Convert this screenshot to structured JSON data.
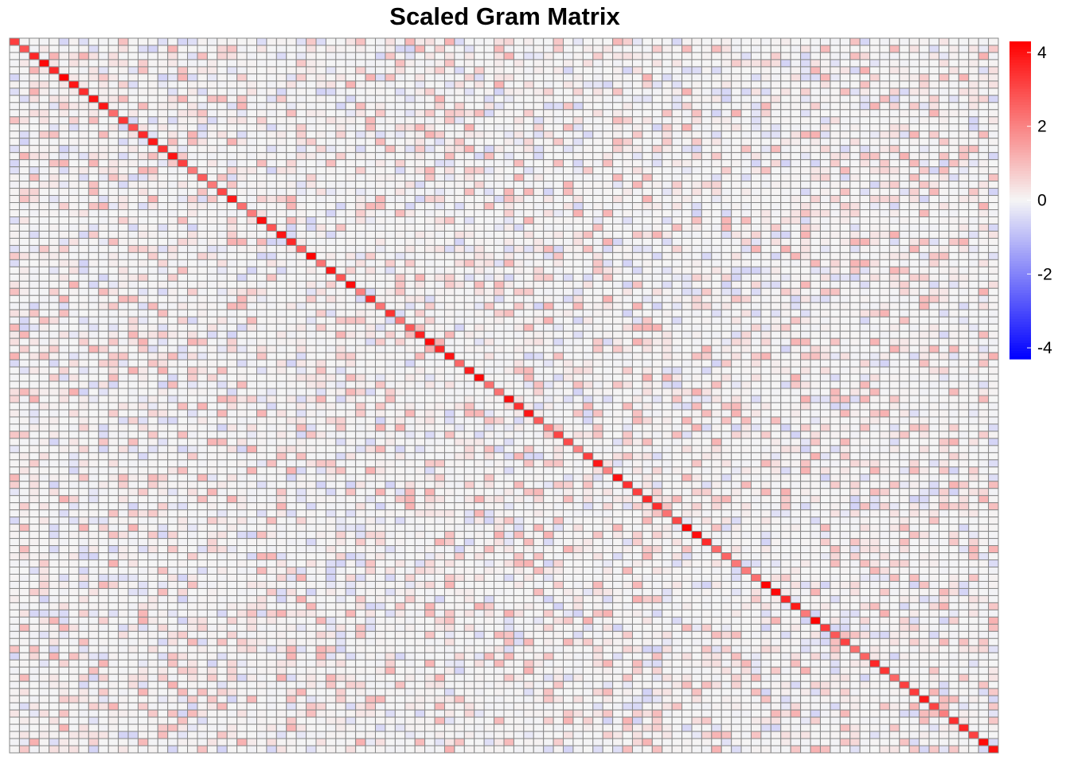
{
  "chart_data": {
    "type": "heatmap",
    "title": "Scaled Gram Matrix",
    "n": 100,
    "matrix_structure": "symmetric; diagonal shown as strong red, off-diagonal cells mostly near 0 with scattered light-red and faint-blue cells",
    "diagonal_value_range": [
      2.0,
      4.3
    ],
    "offdiagonal_value_range": [
      -0.6,
      1.2
    ],
    "color_scale": {
      "min": -4.3,
      "max": 4.3,
      "low_color": "#0000ff",
      "mid_color": "#f5f5f5",
      "high_color": "#ff0000",
      "ticks": [
        4,
        2,
        0,
        -2,
        -4
      ],
      "tick_labels": [
        "4",
        "2",
        "0",
        "-2",
        "-4"
      ]
    },
    "grid": true,
    "grid_color": "#888888",
    "legend_placement": "right"
  }
}
